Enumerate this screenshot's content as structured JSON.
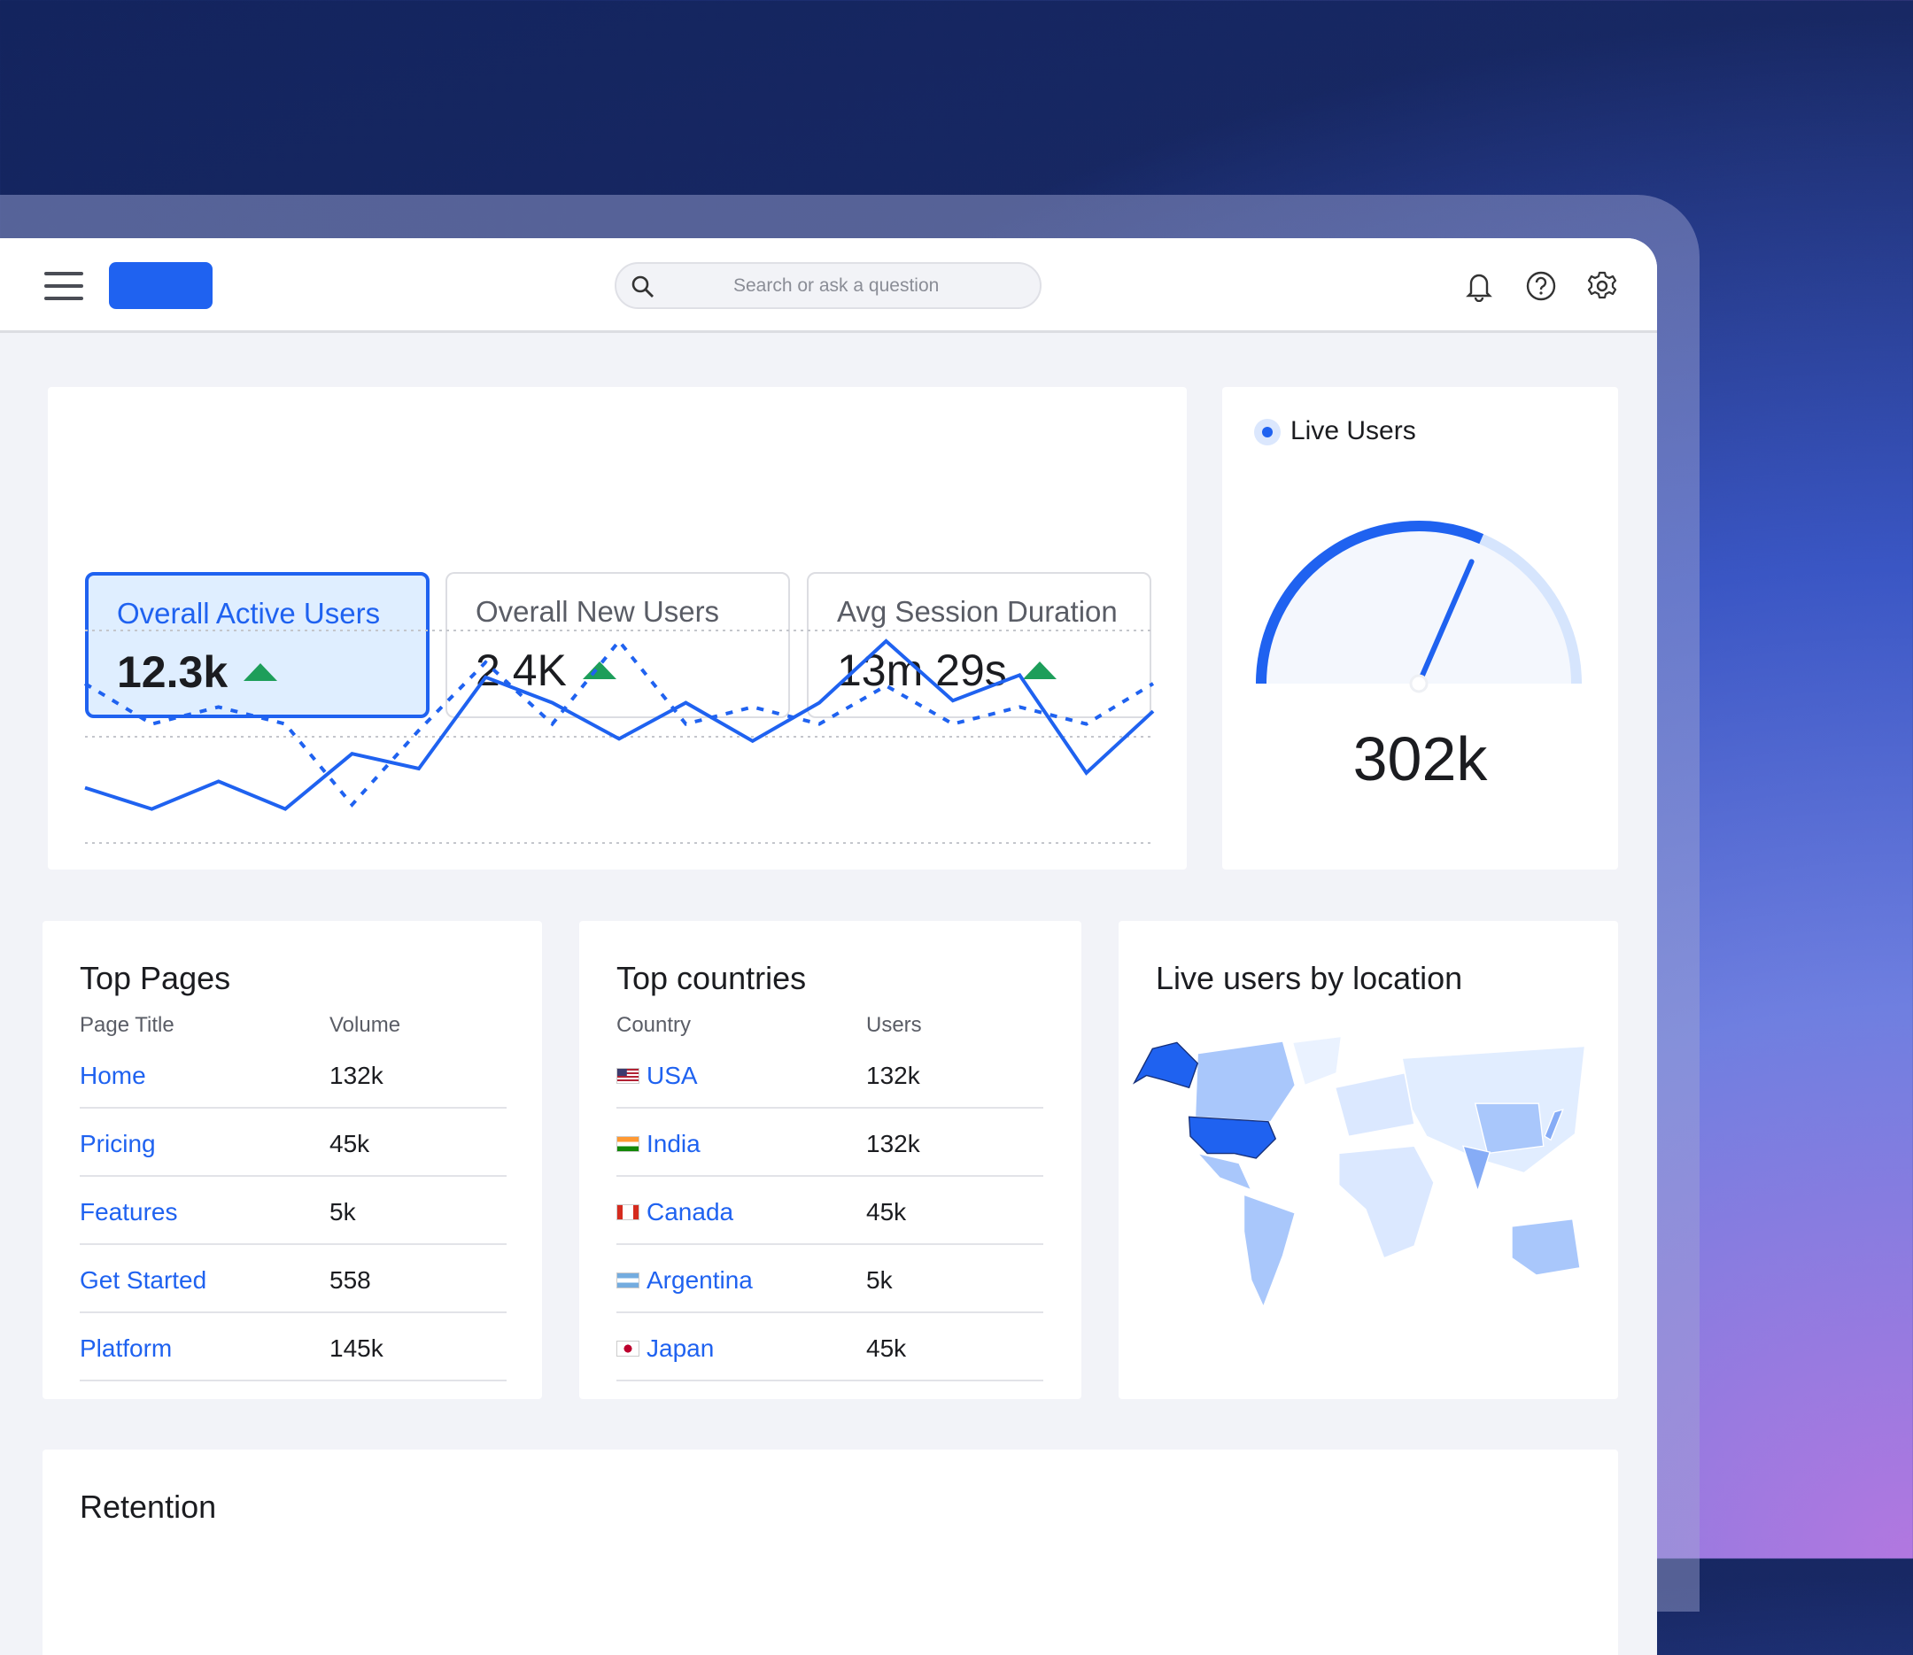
{
  "header": {
    "search_placeholder": "Search or ask a question",
    "icons": [
      "menu-icon",
      "bell-icon",
      "help-icon",
      "gear-icon"
    ],
    "brand_color": "#1f62f0"
  },
  "kpis": [
    {
      "label": "Overall Active Users",
      "value": "12.3k",
      "trend": "up",
      "active": true
    },
    {
      "label": "Overall New Users",
      "value": "2.4K",
      "trend": "up",
      "active": false
    },
    {
      "label": "Avg Session Duration",
      "value": "13m 29s",
      "trend": "up",
      "active": false
    }
  ],
  "chart_data": {
    "type": "line",
    "grid": true,
    "ylim": [
      0,
      100
    ],
    "x": [
      1,
      2,
      3,
      4,
      5,
      6,
      7,
      8,
      9,
      10,
      11,
      12,
      13,
      14,
      15,
      16,
      17
    ],
    "series": [
      {
        "style": "solid",
        "color": "#1f62f0",
        "values": [
          26,
          16,
          29,
          16,
          42,
          35,
          78,
          66,
          49,
          66,
          48,
          66,
          95,
          67,
          79,
          33,
          62
        ]
      },
      {
        "style": "dashed",
        "color": "#1f62f0",
        "values": [
          75,
          56,
          64,
          56,
          18,
          53,
          85,
          56,
          95,
          56,
          64,
          56,
          74,
          56,
          64,
          56,
          75
        ]
      }
    ]
  },
  "live": {
    "title": "Live Users",
    "value": "302k",
    "gauge_fraction": 0.63
  },
  "top_pages": {
    "title": "Top Pages",
    "col1": "Page Title",
    "col2": "Volume",
    "rows": [
      {
        "name": "Home",
        "value": "132k"
      },
      {
        "name": "Pricing",
        "value": "45k"
      },
      {
        "name": "Features",
        "value": "5k"
      },
      {
        "name": "Get Started",
        "value": "558"
      },
      {
        "name": "Platform",
        "value": "145k"
      }
    ]
  },
  "top_countries": {
    "title": "Top countries",
    "col1": "Country",
    "col2": "Users",
    "rows": [
      {
        "name": "USA",
        "value": "132k",
        "flag": "flag-usa"
      },
      {
        "name": "India",
        "value": "132k",
        "flag": "flag-india"
      },
      {
        "name": "Canada",
        "value": "45k",
        "flag": "flag-canada"
      },
      {
        "name": "Argentina",
        "value": "5k",
        "flag": "flag-argentina"
      },
      {
        "name": "Japan",
        "value": "45k",
        "flag": "flag-japan"
      }
    ]
  },
  "map": {
    "title": "Live users by location",
    "highlight": "USA",
    "highlight_color": "#1f62f0"
  },
  "retention": {
    "title": "Retention"
  }
}
